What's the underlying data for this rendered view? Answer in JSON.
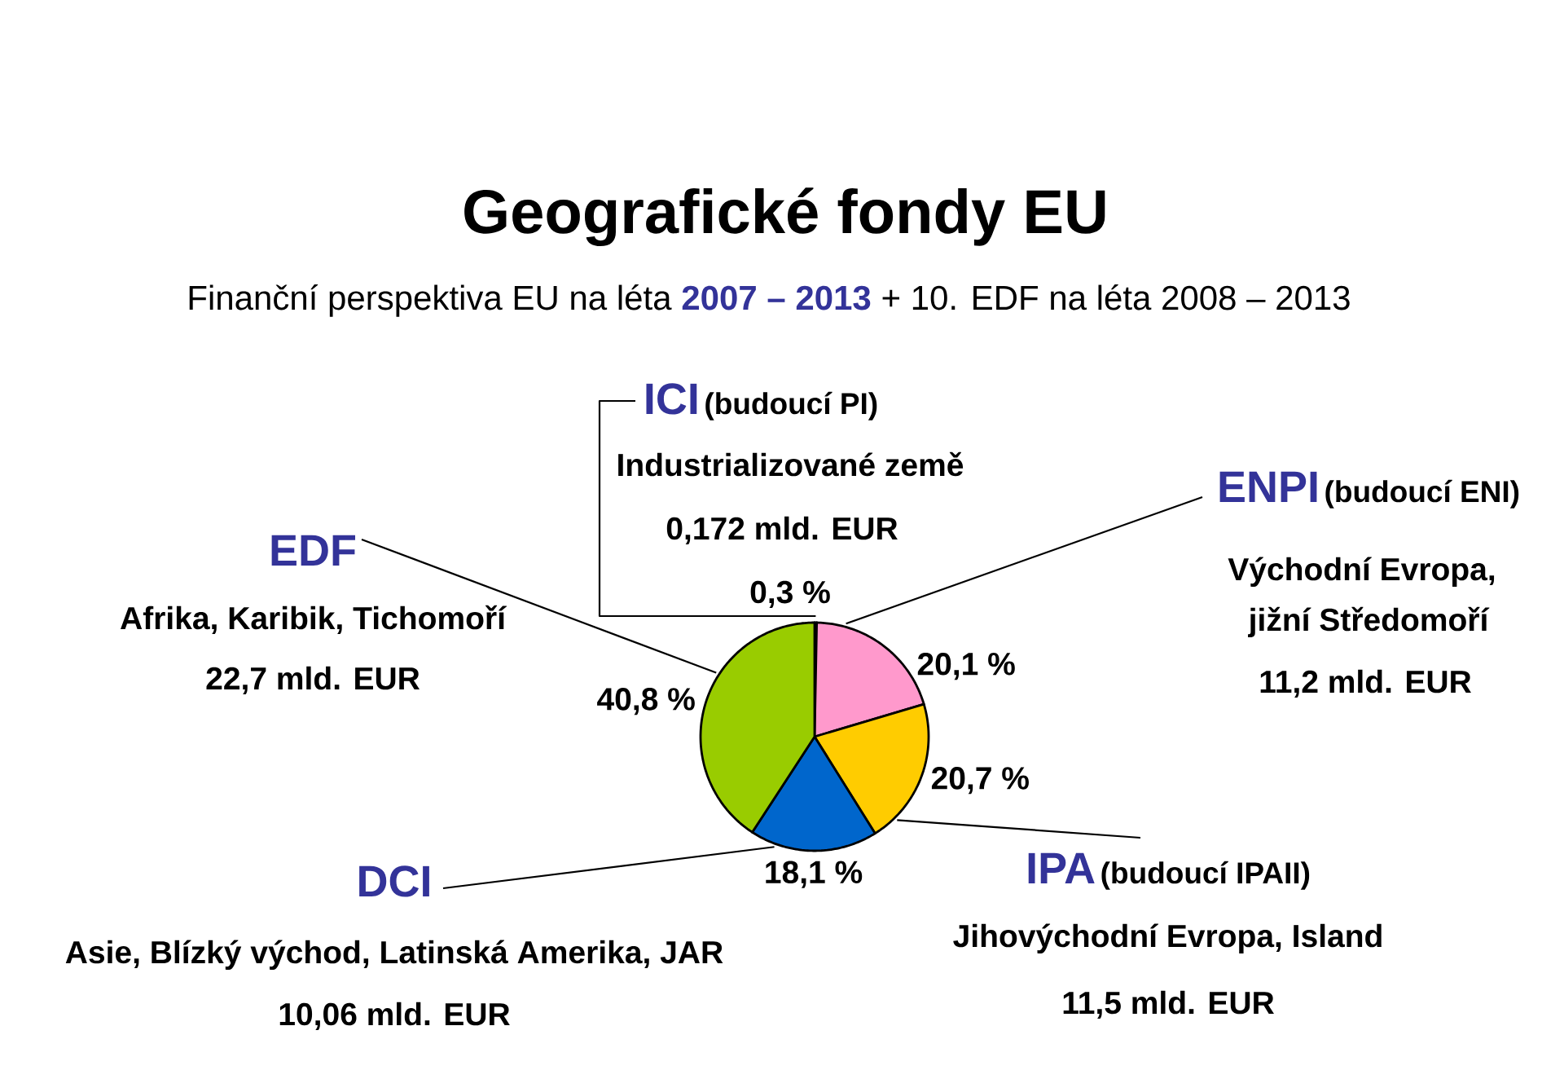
{
  "chart_data": {
    "type": "pie",
    "title": "Geografické fondy EU",
    "subtitle": "Finanční perspektiva EU na léta **2007 – 2013** + 10. EDF na léta 2008 – 2013",
    "categories": [
      "ICI",
      "ENPI",
      "IPA",
      "DCI",
      "EDF"
    ],
    "values": [
      0.3,
      20.1,
      20.7,
      18.1,
      40.8
    ],
    "value_labels": [
      "0,3 %",
      "20,1 %",
      "20,7 %",
      "18,1 %",
      "40,8 %"
    ],
    "colors": [
      "#993366",
      "#ff99cc",
      "#ffcc00",
      "#0066cc",
      "#99cc00"
    ],
    "annotations": [
      "(budoucí PI)",
      "Industrializované země",
      "0,172 mld. EUR",
      "(budoucí ENI)",
      "Východní Evropa,",
      "jižní Středomoří",
      "11,2 mld. EUR",
      "(budoucí IPAII)",
      "Jihovýchodní Evropa, Island",
      "11,5 mld. EUR",
      "Asie, Blízký východ, Latinská Amerika, JAR",
      "10,06 mld. EUR",
      "Afrika, Karibik, Tichomoří",
      "22,7 mld. EUR"
    ]
  }
}
